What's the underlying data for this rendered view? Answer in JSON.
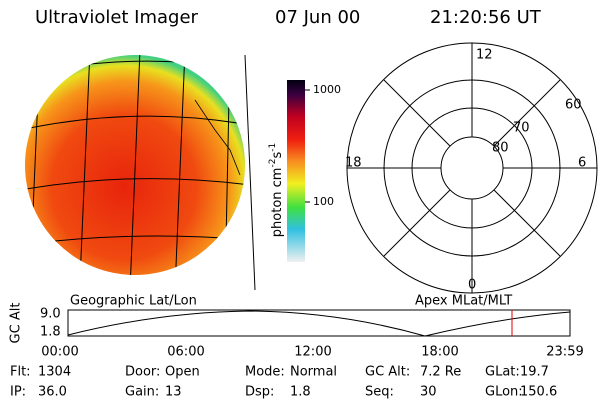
{
  "header": {
    "instrument": "Ultraviolet Imager",
    "date": "07 Jun 00",
    "time": "21:20:56 UT"
  },
  "colorbar": {
    "ticks": [
      "1000",
      "100"
    ],
    "unit": [
      "photon cm",
      "-2",
      "s",
      "-1"
    ]
  },
  "polar": {
    "mlt_labels": [
      "12",
      "18",
      "6",
      "0"
    ],
    "lat_labels": [
      "60",
      "70",
      "80"
    ]
  },
  "panel_labels": {
    "left": "Geographic Lat/Lon",
    "right": "Apex MLat/MLT"
  },
  "altitude": {
    "axis_label": "GC Alt",
    "yticks": [
      "9.0",
      "1.8"
    ],
    "xticks": [
      "00:00",
      "06:00",
      "12:00",
      "18:00",
      "23:59"
    ]
  },
  "info": [
    [
      [
        "Flt:",
        "1304"
      ],
      [
        "Door:",
        "Open"
      ],
      [
        "Mode:",
        "Normal"
      ],
      [
        "GC Alt:",
        "7.2 Re"
      ],
      [
        "GLat:",
        "19.7"
      ]
    ],
    [
      [
        "IP:",
        "36.0"
      ],
      [
        "Gain:",
        "13"
      ],
      [
        "Dsp:",
        "1.8"
      ],
      [
        "Seq:",
        "30"
      ],
      [
        "GLon:",
        "150.6"
      ]
    ]
  ]
}
